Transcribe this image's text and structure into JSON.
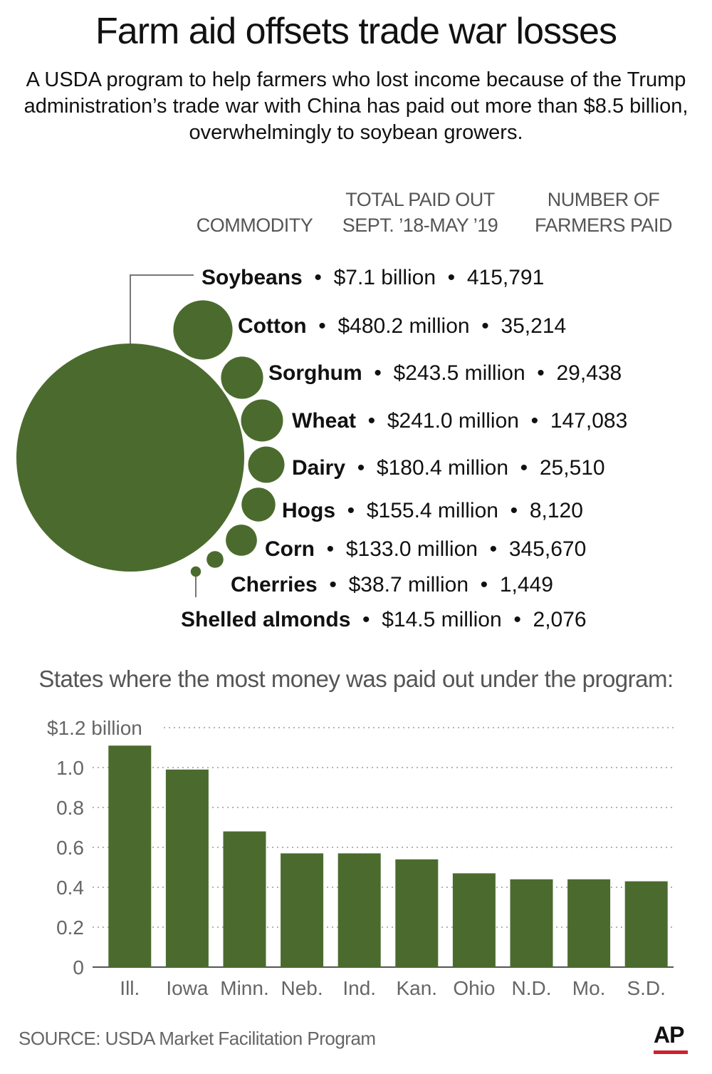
{
  "title": "Farm aid offsets trade war losses",
  "subtitle": "A USDA program to help farmers who lost income because of the Trump administration’s trade war with China has paid out more than $8.5 billion, overwhelmingly to soybean growers.",
  "headers": {
    "commodity": "COMMODITY",
    "total_paid_line1": "TOTAL PAID OUT",
    "total_paid_line2": "SEPT. ’18-MAY ’19",
    "farmers_line1": "NUMBER OF",
    "farmers_line2": "FARMERS PAID"
  },
  "colors": {
    "bubble": "#4b6b2e",
    "bar": "#4b6b2e",
    "grid": "#9a9a9a",
    "axis_text": "#666666",
    "ap_red": "#d0202e"
  },
  "bar_chart_title": "States where the most money was paid out under the program:",
  "source": "SOURCE: USDA Market Facilitation Program",
  "logo": "AP",
  "chart_data": [
    {
      "type": "bubble",
      "categories": [
        "Soybeans",
        "Cotton",
        "Sorghum",
        "Wheat",
        "Dairy",
        "Hogs",
        "Corn",
        "Cherries",
        "Shelled almonds"
      ],
      "series": [
        {
          "name": "TOTAL PAID OUT SEPT. ’18-MAY ’19",
          "values_text": [
            "$7.1 billion",
            "$480.2 million",
            "$243.5 million",
            "$241.0 million",
            "$180.4 million",
            "$155.4 million",
            "$133.0 million",
            "$38.7 million",
            "$14.5 million"
          ],
          "values_millions": [
            7100,
            480.2,
            243.5,
            241.0,
            180.4,
            155.4,
            133.0,
            38.7,
            14.5
          ]
        },
        {
          "name": "NUMBER OF FARMERS PAID",
          "values_text": [
            "415,791",
            "35,214",
            "29,438",
            "147,083",
            "25,510",
            "8,120",
            "345,670",
            "1,449",
            "2,076"
          ],
          "values": [
            415791,
            35214,
            29438,
            147083,
            25510,
            8120,
            345670,
            1449,
            2076
          ]
        }
      ]
    },
    {
      "type": "bar",
      "categories": [
        "Ill.",
        "Iowa",
        "Minn.",
        "Neb.",
        "Ind.",
        "Kan.",
        "Ohio",
        "N.D.",
        "Mo.",
        "S.D."
      ],
      "values": [
        1.11,
        0.99,
        0.68,
        0.57,
        0.57,
        0.54,
        0.47,
        0.44,
        0.44,
        0.43
      ],
      "ylim": [
        0,
        1.2
      ],
      "yticks": [
        0,
        0.2,
        0.4,
        0.6,
        0.8,
        1.0,
        1.2
      ],
      "ytick_labels": [
        "0",
        "0.2",
        "0.4",
        "0.6",
        "0.8",
        "1.0",
        "$1.2 billion"
      ],
      "grid": true
    }
  ]
}
